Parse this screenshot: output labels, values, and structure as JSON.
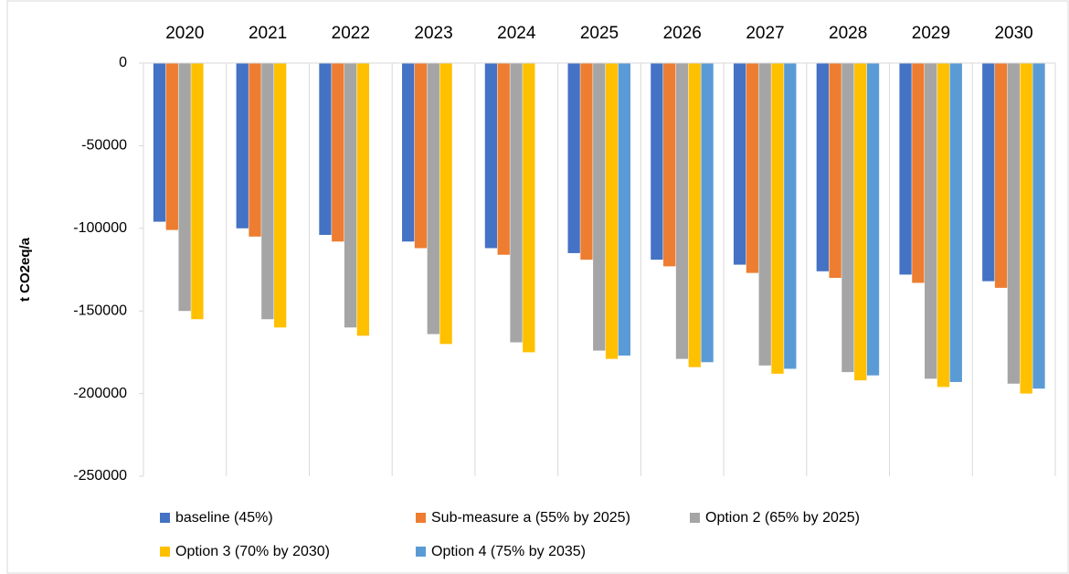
{
  "chart_data": {
    "type": "bar",
    "y_label": "t CO2eq/a",
    "categories": [
      "2020",
      "2021",
      "2022",
      "2023",
      "2024",
      "2025",
      "2026",
      "2027",
      "2028",
      "2029",
      "2030"
    ],
    "series": [
      {
        "name": "baseline (45%)",
        "color": "#4472c4",
        "values": [
          -96000,
          -100000,
          -104000,
          -108000,
          -112000,
          -115000,
          -119000,
          -122000,
          -126000,
          -128000,
          -132000
        ]
      },
      {
        "name": "Sub-measure a (55% by 2025)",
        "color": "#ed7d31",
        "values": [
          -101000,
          -105000,
          -108000,
          -112000,
          -116000,
          -119000,
          -123000,
          -127000,
          -130000,
          -133000,
          -136000
        ]
      },
      {
        "name": "Option 2 (65% by 2025)",
        "color": "#a5a5a5",
        "values": [
          -150000,
          -155000,
          -160000,
          -164000,
          -169000,
          -174000,
          -179000,
          -183000,
          -187000,
          -191000,
          -194000
        ]
      },
      {
        "name": "Option 3 (70% by 2030)",
        "color": "#ffc000",
        "values": [
          -155000,
          -160000,
          -165000,
          -170000,
          -175000,
          -179000,
          -184000,
          -188000,
          -192000,
          -196000,
          -200000
        ]
      },
      {
        "name": "Option 4 (75% by 2035)",
        "color": "#5b9bd5",
        "values": [
          null,
          null,
          null,
          null,
          null,
          -177000,
          -181000,
          -185000,
          -189000,
          -193000,
          -197000
        ]
      }
    ],
    "ylim": [
      -250000,
      0
    ],
    "yticks": [
      0,
      -50000,
      -100000,
      -150000,
      -200000,
      -250000
    ],
    "grid": true,
    "legend": "bottom"
  }
}
